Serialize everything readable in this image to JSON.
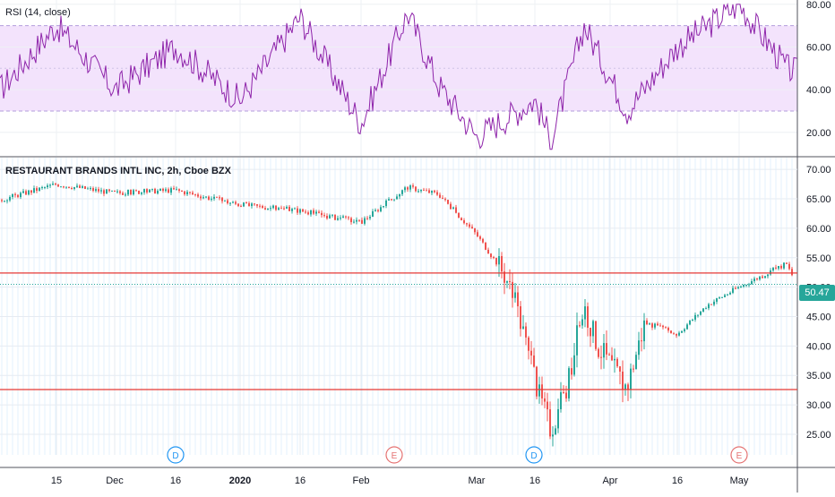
{
  "rsi_panel": {
    "title": "RSI (14, close)",
    "ticks": [
      "80.00",
      "60.00",
      "40.00",
      "20.00"
    ],
    "tick_values": [
      80,
      60,
      40,
      20
    ],
    "range": [
      9,
      82
    ],
    "band": [
      30,
      70
    ],
    "line_color": "#8e24aa",
    "band_color": "#f3e3fc"
  },
  "price_panel": {
    "title": "RESTAURANT BRANDS INTL INC, 2h, Cboe BZX",
    "ticks": [
      "70.00",
      "65.00",
      "60.00",
      "55.00",
      "50.00",
      "45.00",
      "40.00",
      "35.00",
      "30.00",
      "25.00"
    ],
    "tick_values": [
      70,
      65,
      60,
      55,
      50,
      45,
      40,
      35,
      30,
      25
    ],
    "range": [
      21.5,
      72
    ],
    "last_price_label": "50.47",
    "last_price": 50.47,
    "up_color": "#26a69a",
    "down_color": "#ef5350",
    "level_color": "#e53935"
  },
  "x_axis": {
    "labels": [
      "15",
      "Dec",
      "16",
      "2020",
      "16",
      "Feb",
      "Mar",
      "16",
      "Apr",
      "16",
      "May"
    ],
    "bold": [
      false,
      false,
      false,
      true,
      false,
      false,
      false,
      false,
      false,
      false,
      false
    ]
  },
  "event_markers": [
    {
      "label": "D",
      "color": "#2196f3"
    },
    {
      "label": "E",
      "color": "#e57373"
    },
    {
      "label": "D",
      "color": "#2196f3"
    },
    {
      "label": "E",
      "color": "#e57373"
    }
  ],
  "chart_data": {
    "type": "candlestick",
    "title": "RESTAURANT BRANDS INTL INC, 2h, Cboe BZX",
    "ylim": [
      21.5,
      72
    ],
    "horizontal_levels": [
      52.4,
      32.6
    ],
    "last_price": 50.47,
    "close_path": [
      [
        "start",
        64.8
      ],
      [
        "15",
        67.5
      ],
      [
        "Dec",
        66.0
      ],
      [
        "16",
        66.5
      ],
      [
        "2020",
        64.0
      ],
      [
        "16",
        63.0
      ],
      [
        "Feb",
        61.0
      ],
      [
        "mid-Feb",
        67.0
      ],
      [
        "late-Feb",
        65.8
      ],
      [
        "Mar",
        59.0
      ],
      [
        "Mar 12",
        52.0
      ],
      [
        "Mar 13",
        44.0
      ],
      [
        "16",
        34.0
      ],
      [
        "Mar 19",
        26.0
      ],
      [
        "Mar 23",
        32.0
      ],
      [
        "Mar 26",
        47.0
      ],
      [
        "Mar 30",
        40.0
      ],
      [
        "Apr 3",
        33.0
      ],
      [
        "Apr 8",
        44.0
      ],
      [
        "16",
        42.0
      ],
      [
        "Apr 23",
        47.0
      ],
      [
        "May",
        50.0
      ],
      [
        "May 8",
        54.0
      ],
      [
        "end",
        50.47
      ]
    ],
    "rsi": {
      "name": "RSI (14, close)",
      "ylim": [
        9,
        82
      ],
      "overbought": 70,
      "oversold": 30,
      "path": [
        [
          "start",
          40
        ],
        [
          "15",
          70
        ],
        [
          "Dec",
          40
        ],
        [
          "16",
          60
        ],
        [
          "2020",
          35
        ],
        [
          "16",
          74
        ],
        [
          "Feb",
          24
        ],
        [
          "mid-Feb",
          76
        ],
        [
          "late-Feb",
          42
        ],
        [
          "Mar",
          18
        ],
        [
          "16",
          35
        ],
        [
          "Mar 19",
          16
        ],
        [
          "Mar 26",
          70
        ],
        [
          "Apr 3",
          30
        ],
        [
          "16",
          60
        ],
        [
          "May",
          80
        ],
        [
          "May 8",
          50
        ],
        [
          "end",
          48
        ]
      ]
    }
  }
}
